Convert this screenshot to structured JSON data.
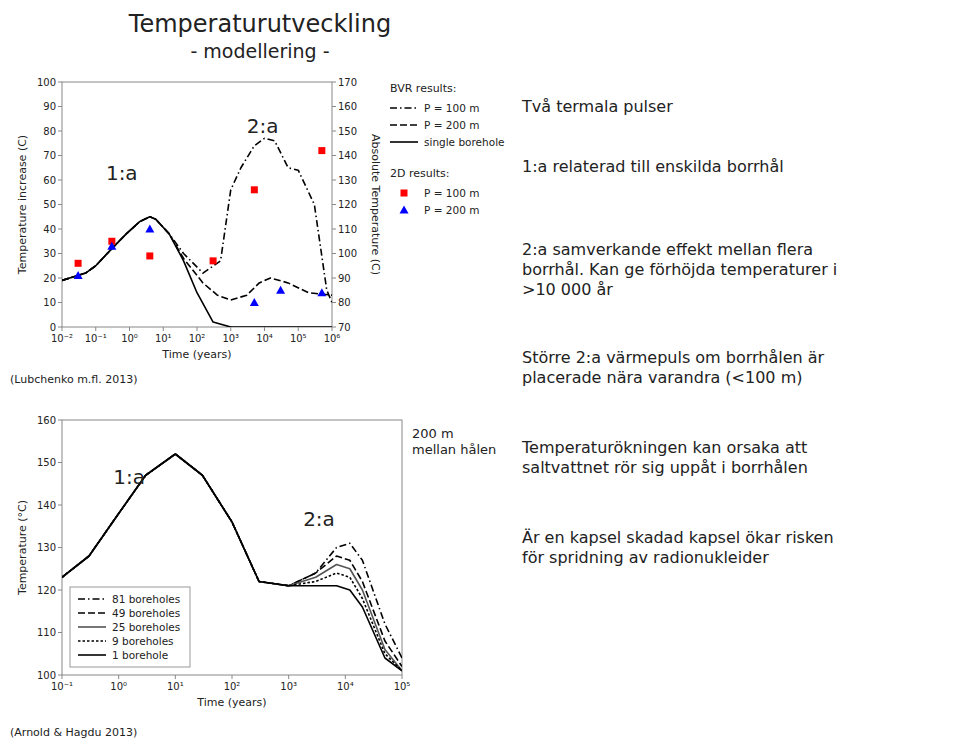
{
  "title": "Temperaturutveckling",
  "subtitle": "- modellering -",
  "notes": [
    "Två termala pulser",
    "1:a relaterad till enskilda borrhål",
    "2:a samverkande effekt mellan flera\nborrhål. Kan ge förhöjda temperaturer i\n>10 000 år",
    "Större 2:a värmepuls om borrhålen är\nplacerade nära varandra (<100 m)",
    "Temperaturökningen kan orsaka att\nsaltvattnet rör sig uppåt i borrhålen",
    "Är en kapsel skadad kapsel ökar risken\nför spridning av radionukleider"
  ],
  "chart_data": [
    {
      "type": "line",
      "xlabel": "Time (years)",
      "ylabel": "Temperature increase (C)",
      "y2label": "Absolute Temperature (C)",
      "source": "(Lubchenko m.fl. 2013)",
      "log": "x",
      "xlim": [
        0.01,
        1000000
      ],
      "xticks": [
        {
          "value": 0.01,
          "label": "10⁻²"
        },
        {
          "value": 0.1,
          "label": "10⁻¹"
        },
        {
          "value": 1,
          "label": "10⁰"
        },
        {
          "value": 10,
          "label": "10¹"
        },
        {
          "value": 100,
          "label": "10²"
        },
        {
          "value": 1000,
          "label": "10³"
        },
        {
          "value": 10000,
          "label": "10⁴"
        },
        {
          "value": 100000,
          "label": "10⁵"
        },
        {
          "value": 1000000,
          "label": "10⁶"
        }
      ],
      "ylim": [
        0,
        100
      ],
      "yticks": [
        0,
        10,
        20,
        30,
        40,
        50,
        60,
        70,
        80,
        90,
        100
      ],
      "y2lim": [
        70,
        170
      ],
      "y2ticks": [
        70,
        80,
        90,
        100,
        110,
        120,
        130,
        140,
        150,
        160,
        170
      ],
      "grid": false,
      "legend": "right",
      "legend_groups": [
        "BVR results:",
        "2D results:"
      ],
      "annotations": [
        {
          "text": "1:a",
          "x": 0.2,
          "y": 60
        },
        {
          "text": "2:a",
          "x": 3000,
          "y": 79
        }
      ],
      "series": [
        {
          "name": "P = 100 m",
          "type": "line",
          "line_style": "dashdot",
          "color": "#000000",
          "x": [
            0.01,
            0.05,
            0.1,
            0.3,
            0.8,
            2,
            4,
            6,
            15,
            40,
            150,
            500,
            1000,
            2000,
            5000,
            10000,
            20000,
            50000,
            100000,
            300000,
            700000,
            1000000
          ],
          "values": [
            19,
            22,
            25,
            32,
            38,
            43,
            45,
            44,
            38,
            30,
            22,
            27,
            56,
            65,
            74,
            77,
            76,
            65,
            64,
            50,
            15,
            10
          ]
        },
        {
          "name": "P = 200 m",
          "type": "line",
          "line_style": "dashed",
          "color": "#000000",
          "x": [
            0.01,
            0.05,
            0.1,
            0.3,
            0.8,
            2,
            4,
            6,
            15,
            40,
            150,
            400,
            1000,
            3000,
            7000,
            15000,
            50000,
            200000,
            1000000
          ],
          "values": [
            19,
            22,
            25,
            32,
            38,
            43,
            45,
            44,
            38,
            28,
            18,
            13,
            11,
            13,
            18,
            20,
            18,
            14,
            13
          ]
        },
        {
          "name": "single borehole",
          "type": "line",
          "line_style": "solid",
          "color": "#000000",
          "x": [
            0.01,
            0.05,
            0.1,
            0.3,
            0.8,
            2,
            4,
            6,
            15,
            40,
            100,
            300,
            1000,
            10000,
            1000000
          ],
          "values": [
            19,
            22,
            25,
            32,
            38,
            43,
            45,
            44,
            38,
            27,
            14,
            2,
            0,
            0,
            0
          ]
        },
        {
          "name": "P = 100 m",
          "type": "scatter",
          "marker": "square",
          "color": "#ff0000",
          "x": [
            0.03,
            0.3,
            4,
            300,
            5000,
            500000
          ],
          "values": [
            26,
            35,
            29,
            27,
            56,
            72
          ]
        },
        {
          "name": "P = 200 m",
          "type": "scatter",
          "marker": "triangle",
          "color": "#0000ff",
          "x": [
            0.03,
            0.3,
            4,
            5000,
            30000,
            500000
          ],
          "values": [
            21,
            33,
            40,
            10,
            15,
            14
          ]
        }
      ]
    },
    {
      "type": "line",
      "subtitle": "200 m\nmellan hålen",
      "xlabel": "Time (years)",
      "ylabel": "Temperature (°C)",
      "source": "(Arnold & Hagdu 2013)",
      "log": "x",
      "xlim": [
        0.1,
        100000
      ],
      "xticks": [
        {
          "value": 0.1,
          "label": "10⁻¹"
        },
        {
          "value": 1,
          "label": "10⁰"
        },
        {
          "value": 10,
          "label": "10¹"
        },
        {
          "value": 100,
          "label": "10²"
        },
        {
          "value": 1000,
          "label": "10³"
        },
        {
          "value": 10000,
          "label": "10⁴"
        },
        {
          "value": 100000,
          "label": "10⁵"
        }
      ],
      "ylim": [
        100,
        160
      ],
      "yticks": [
        100,
        110,
        120,
        130,
        140,
        150,
        160
      ],
      "grid": false,
      "legend": "lower-left",
      "annotations": [
        {
          "text": "1:a",
          "x": 0.8,
          "y": 145
        },
        {
          "text": "2:a",
          "x": 1800,
          "y": 135
        }
      ],
      "x": [
        0.1,
        0.3,
        1,
        3,
        10,
        30,
        100,
        300,
        1000,
        3000,
        7000,
        12000,
        20000,
        50000,
        100000
      ],
      "series": [
        {
          "name": "81 boreholes",
          "line_style": "dashdot",
          "color": "#000000",
          "values": [
            123,
            128,
            138,
            147,
            152,
            147,
            136,
            122,
            121,
            124,
            130,
            131,
            127,
            112,
            104
          ]
        },
        {
          "name": "49 boreholes",
          "line_style": "dashed",
          "color": "#000000",
          "values": [
            123,
            128,
            138,
            147,
            152,
            147,
            136,
            122,
            121,
            124,
            128,
            127,
            122,
            108,
            102
          ]
        },
        {
          "name": "25 boreholes",
          "line_style": "solid",
          "color": "#555555",
          "values": [
            123,
            128,
            138,
            147,
            152,
            147,
            136,
            122,
            121,
            123,
            126,
            125,
            120,
            106,
            101
          ]
        },
        {
          "name": "9 boreholes",
          "line_style": "dotted",
          "color": "#000000",
          "values": [
            123,
            128,
            138,
            147,
            152,
            147,
            136,
            122,
            121,
            122,
            124,
            123,
            118,
            105,
            101
          ]
        },
        {
          "name": "1 borehole",
          "line_style": "solid",
          "color": "#000000",
          "values": [
            123,
            128,
            138,
            147,
            152,
            147,
            136,
            122,
            121,
            121,
            121,
            120,
            116,
            104,
            101
          ]
        }
      ]
    }
  ]
}
